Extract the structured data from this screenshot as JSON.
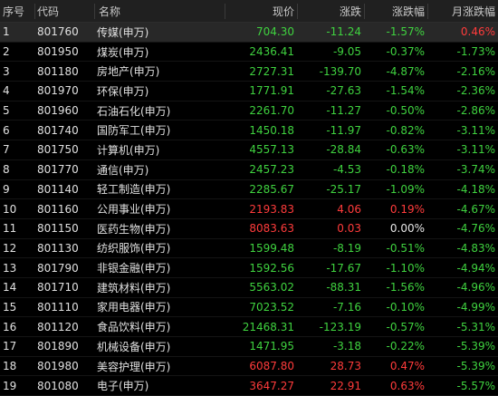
{
  "header": {
    "idx": "序号",
    "code": "代码",
    "name": "名称",
    "price": "现价",
    "change": "涨跌",
    "pct": "涨跌幅",
    "month_pct": "月涨跌幅"
  },
  "rows": [
    {
      "idx": "1",
      "code": "801760",
      "name": "传媒(申万)",
      "price": "704.30",
      "change": "-11.24",
      "pct": "-1.57%",
      "month_pct": "0.46%",
      "dir": "down",
      "mdir": "up"
    },
    {
      "idx": "2",
      "code": "801950",
      "name": "煤炭(申万)",
      "price": "2436.41",
      "change": "-9.05",
      "pct": "-0.37%",
      "month_pct": "-1.73%",
      "dir": "down",
      "mdir": "down"
    },
    {
      "idx": "3",
      "code": "801180",
      "name": "房地产(申万)",
      "price": "2727.31",
      "change": "-139.70",
      "pct": "-4.87%",
      "month_pct": "-2.16%",
      "dir": "down",
      "mdir": "down"
    },
    {
      "idx": "4",
      "code": "801970",
      "name": "环保(申万)",
      "price": "1771.91",
      "change": "-27.63",
      "pct": "-1.54%",
      "month_pct": "-2.36%",
      "dir": "down",
      "mdir": "down"
    },
    {
      "idx": "5",
      "code": "801960",
      "name": "石油石化(申万)",
      "price": "2261.70",
      "change": "-11.27",
      "pct": "-0.50%",
      "month_pct": "-2.86%",
      "dir": "down",
      "mdir": "down"
    },
    {
      "idx": "6",
      "code": "801740",
      "name": "国防军工(申万)",
      "price": "1450.18",
      "change": "-11.97",
      "pct": "-0.82%",
      "month_pct": "-3.11%",
      "dir": "down",
      "mdir": "down"
    },
    {
      "idx": "7",
      "code": "801750",
      "name": "计算机(申万)",
      "price": "4557.13",
      "change": "-28.84",
      "pct": "-0.63%",
      "month_pct": "-3.11%",
      "dir": "down",
      "mdir": "down"
    },
    {
      "idx": "8",
      "code": "801770",
      "name": "通信(申万)",
      "price": "2457.23",
      "change": "-4.53",
      "pct": "-0.18%",
      "month_pct": "-3.74%",
      "dir": "down",
      "mdir": "down"
    },
    {
      "idx": "9",
      "code": "801140",
      "name": "轻工制造(申万)",
      "price": "2285.67",
      "change": "-25.17",
      "pct": "-1.09%",
      "month_pct": "-4.18%",
      "dir": "down",
      "mdir": "down"
    },
    {
      "idx": "10",
      "code": "801160",
      "name": "公用事业(申万)",
      "price": "2193.83",
      "change": "4.06",
      "pct": "0.19%",
      "month_pct": "-4.67%",
      "dir": "up",
      "mdir": "down"
    },
    {
      "idx": "11",
      "code": "801150",
      "name": "医药生物(申万)",
      "price": "8083.63",
      "change": "0.03",
      "pct": "0.00%",
      "month_pct": "-4.76%",
      "dir": "up",
      "pdir": "flat",
      "mdir": "down"
    },
    {
      "idx": "12",
      "code": "801130",
      "name": "纺织服饰(申万)",
      "price": "1599.48",
      "change": "-8.19",
      "pct": "-0.51%",
      "month_pct": "-4.83%",
      "dir": "down",
      "mdir": "down"
    },
    {
      "idx": "13",
      "code": "801790",
      "name": "非银金融(申万)",
      "price": "1592.56",
      "change": "-17.67",
      "pct": "-1.10%",
      "month_pct": "-4.94%",
      "dir": "down",
      "mdir": "down"
    },
    {
      "idx": "14",
      "code": "801710",
      "name": "建筑材料(申万)",
      "price": "5563.02",
      "change": "-88.31",
      "pct": "-1.56%",
      "month_pct": "-4.96%",
      "dir": "down",
      "mdir": "down"
    },
    {
      "idx": "15",
      "code": "801110",
      "name": "家用电器(申万)",
      "price": "7023.52",
      "change": "-7.16",
      "pct": "-0.10%",
      "month_pct": "-4.99%",
      "dir": "down",
      "mdir": "down"
    },
    {
      "idx": "16",
      "code": "801120",
      "name": "食品饮料(申万)",
      "price": "21468.31",
      "change": "-123.19",
      "pct": "-0.57%",
      "month_pct": "-5.31%",
      "dir": "down",
      "mdir": "down"
    },
    {
      "idx": "17",
      "code": "801890",
      "name": "机械设备(申万)",
      "price": "1471.95",
      "change": "-3.18",
      "pct": "-0.22%",
      "month_pct": "-5.39%",
      "dir": "down",
      "mdir": "down"
    },
    {
      "idx": "18",
      "code": "801980",
      "name": "美容护理(申万)",
      "price": "6087.80",
      "change": "28.73",
      "pct": "0.47%",
      "month_pct": "-5.39%",
      "dir": "up",
      "mdir": "down"
    },
    {
      "idx": "19",
      "code": "801080",
      "name": "电子(申万)",
      "price": "3647.27",
      "change": "22.91",
      "pct": "0.63%",
      "month_pct": "-5.57%",
      "dir": "up",
      "mdir": "down"
    }
  ],
  "colors": {
    "up": "#ff3b3b",
    "down": "#3fd23f",
    "background": "#000000",
    "header_bg": "#202020"
  }
}
